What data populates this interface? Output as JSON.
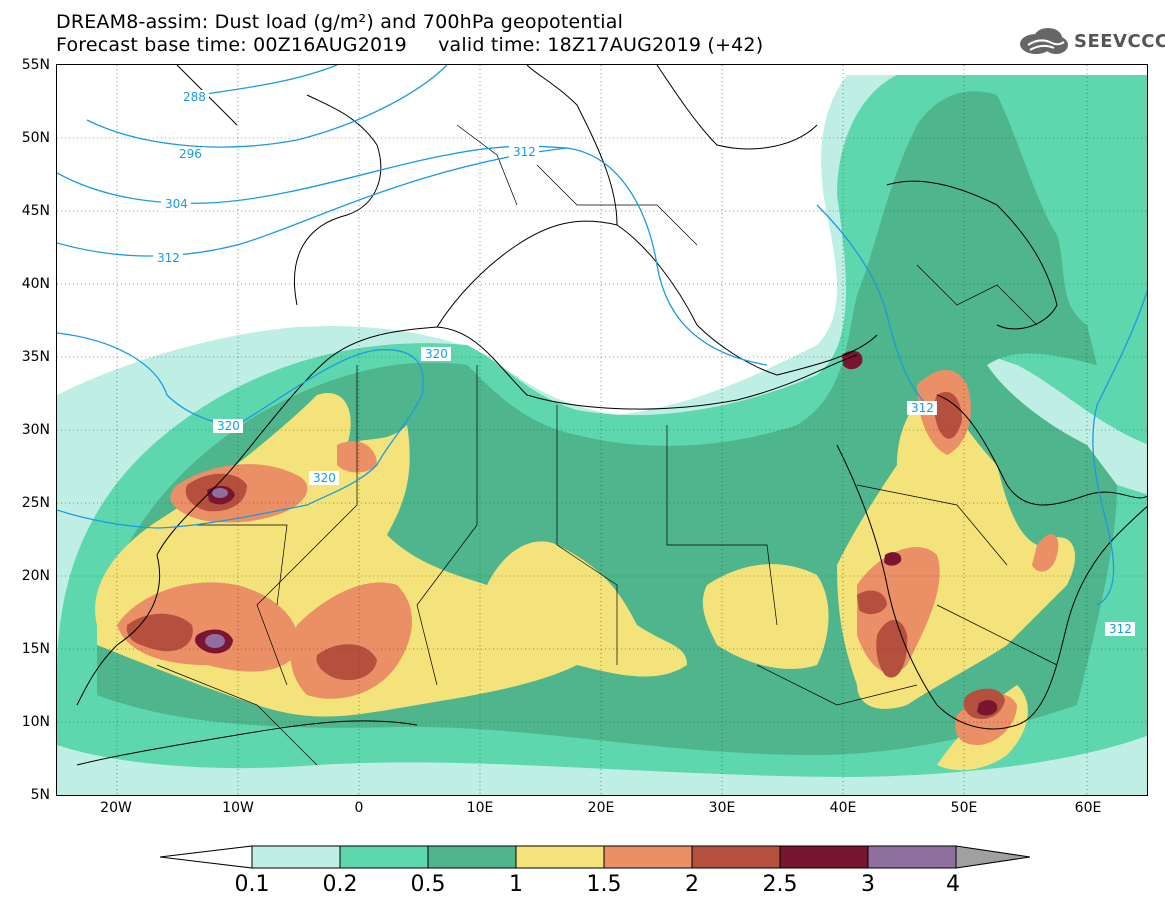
{
  "title": {
    "line1": "DREAM8-assim: Dust load (g/m²) and 700hPa geopotential",
    "line2": "Forecast base time: 00Z16AUG2019     valid time: 18Z17AUG2019 (+42)"
  },
  "logo": {
    "text": "SEEVCCC",
    "icon": "cloud-logo-icon"
  },
  "axes": {
    "lat_labels": [
      "55N",
      "50N",
      "45N",
      "40N",
      "35N",
      "30N",
      "25N",
      "20N",
      "15N",
      "10N",
      "5N"
    ],
    "lon_labels": [
      "20W",
      "10W",
      "0",
      "10E",
      "20E",
      "30E",
      "40E",
      "50E",
      "60E"
    ],
    "lat_range": [
      5,
      55
    ],
    "lon_range": [
      -25,
      65
    ]
  },
  "contours": {
    "labels": [
      "288",
      "296",
      "304",
      "312",
      "312",
      "320",
      "320",
      "320",
      "312",
      "312"
    ],
    "color": "#1a9be0"
  },
  "legend": {
    "thresholds": [
      "0.1",
      "0.2",
      "0.5",
      "1",
      "1.5",
      "2",
      "2.5",
      "3",
      "4"
    ],
    "colors": [
      "#ffffff",
      "#bfeee4",
      "#5ed6ae",
      "#4fb58c",
      "#f4e27a",
      "#ea8f66",
      "#b5503e",
      "#7a1530",
      "#8f6f9f",
      "#a0a0a0"
    ]
  }
}
